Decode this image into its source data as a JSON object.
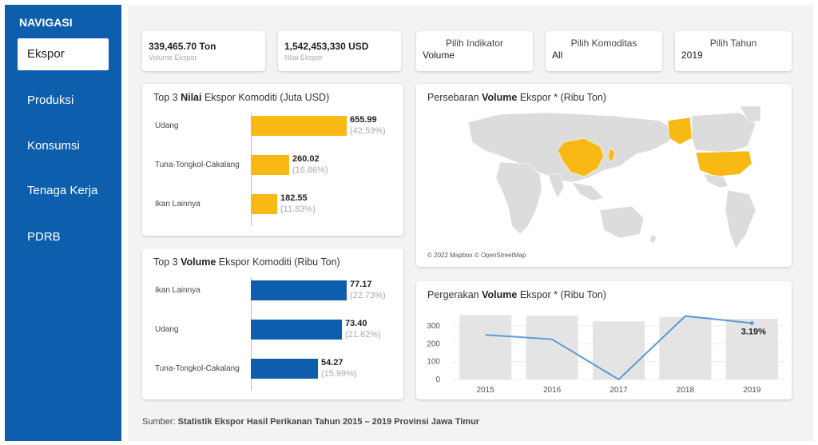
{
  "sidebar": {
    "title": "NAVIGASI",
    "items": [
      "Ekspor",
      "Produksi",
      "Konsumsi",
      "Tenaga Kerja",
      "PDRB"
    ],
    "active": "Ekspor"
  },
  "kpis": [
    {
      "value": "339,465.70 Ton",
      "label": "Volume Ekspor"
    },
    {
      "value": "1,542,453,330 USD",
      "label": "Nilai Ekspor"
    }
  ],
  "filters": [
    {
      "label": "Pilih Indikator",
      "value": "Volume"
    },
    {
      "label": "Pilih Komoditas",
      "value": "All"
    },
    {
      "label": "Pilih Tahun",
      "value": "2019"
    }
  ],
  "nilai_card": {
    "title_pre": "Top 3 ",
    "title_bold": "Nilai",
    "title_post": " Ekspor Komoditi (Juta USD)",
    "rows": [
      {
        "label": "Udang",
        "value": "655.99",
        "pct": "(42.53%)",
        "num": 655.99
      },
      {
        "label": "Tuna-Tongkol-Cakalang",
        "value": "260.02",
        "pct": "(16.86%)",
        "num": 260.02
      },
      {
        "label": "Ikan Lainnya",
        "value": "182.55",
        "pct": "(11.83%)",
        "num": 182.55
      }
    ],
    "color": "#f9b915"
  },
  "volume_card": {
    "title_pre": "Top 3 ",
    "title_bold": "Volume",
    "title_post": " Ekspor Komoditi (Ribu Ton)",
    "rows": [
      {
        "label": "Ikan Lainnya",
        "value": "77.17",
        "pct": "(22.73%)",
        "num": 77.17
      },
      {
        "label": "Udang",
        "value": "73.40",
        "pct": "(21.62%)",
        "num": 73.4
      },
      {
        "label": "Tuna-Tongkol-Cakalang",
        "value": "54.27",
        "pct": "(15.99%)",
        "num": 54.27
      }
    ],
    "color": "#0d5fae"
  },
  "map_card": {
    "title_pre": "Persebaran ",
    "title_bold": "Volume",
    "title_post": " Ekspor * (Ribu Ton)",
    "credit": "© 2022 Mapbox © OpenStreetMap"
  },
  "trend_card": {
    "title_pre": "Pergerakan ",
    "title_bold": "Volume",
    "title_post": " Ekspor * (Ribu Ton)"
  },
  "chart_data": {
    "type": "line",
    "title": "Pergerakan Volume Ekspor * (Ribu Ton)",
    "categories": [
      "2015",
      "2016",
      "2017",
      "2018",
      "2019"
    ],
    "series": [
      {
        "name": "Volume (bar)",
        "values": [
          360,
          358,
          325,
          350,
          340
        ]
      },
      {
        "name": "Volume (line)",
        "values": [
          250,
          225,
          0,
          355,
          315
        ]
      }
    ],
    "yticks": [
      "0",
      "100",
      "200",
      "300"
    ],
    "ylim": [
      0,
      380
    ],
    "annotation": "3.19%"
  },
  "source": {
    "prefix": "Sumber: ",
    "text": "Statistik Ekspor Hasil Perikanan Tahun 2015 – 2019 Provinsi Jawa Timur"
  }
}
